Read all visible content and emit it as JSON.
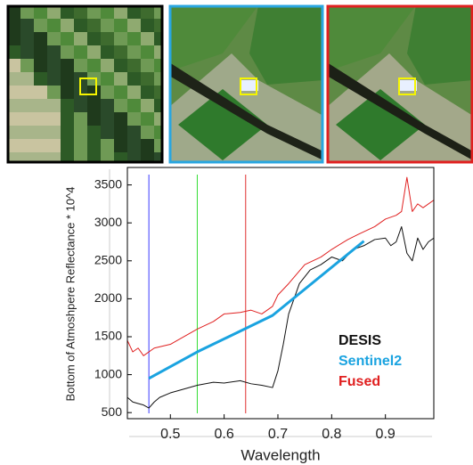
{
  "chart_data": {
    "type": "line",
    "y_label": "Bottom of Atmoshpere Reflectance * 10^4",
    "x_label": "Wavelength",
    "xlim": [
      0.42,
      0.99
    ],
    "ylim": [
      420,
      3730
    ],
    "xticks": [
      0.5,
      0.6,
      0.7,
      0.8,
      0.9
    ],
    "yticks": [
      500,
      1000,
      1500,
      2000,
      2500,
      3000,
      3500
    ],
    "vlines": [
      {
        "x": 0.46,
        "color": "#3a3aff"
      },
      {
        "x": 0.55,
        "color": "#33dd33"
      },
      {
        "x": 0.64,
        "color": "#e03030"
      }
    ],
    "series": [
      {
        "name": "DESIS",
        "color": "#111111",
        "x": [
          0.42,
          0.43,
          0.44,
          0.45,
          0.46,
          0.47,
          0.48,
          0.5,
          0.52,
          0.55,
          0.58,
          0.6,
          0.63,
          0.65,
          0.67,
          0.69,
          0.7,
          0.71,
          0.72,
          0.74,
          0.76,
          0.78,
          0.8,
          0.82,
          0.84,
          0.86,
          0.88,
          0.9,
          0.91,
          0.92,
          0.93,
          0.94,
          0.95,
          0.96,
          0.97,
          0.98,
          0.99
        ],
        "values": [
          700,
          640,
          620,
          600,
          560,
          640,
          700,
          760,
          800,
          860,
          900,
          890,
          920,
          880,
          860,
          830,
          1050,
          1400,
          1800,
          2200,
          2380,
          2450,
          2550,
          2500,
          2650,
          2700,
          2780,
          2800,
          2700,
          2750,
          2950,
          2600,
          2500,
          2800,
          2650,
          2750,
          2800
        ]
      },
      {
        "name": "Sentinel2",
        "color": "#1aa3e0",
        "x": [
          0.46,
          0.55,
          0.69,
          0.86
        ],
        "values": [
          950,
          1300,
          1780,
          2760
        ]
      },
      {
        "name": "Fused",
        "color": "#e02020",
        "x": [
          0.42,
          0.43,
          0.44,
          0.45,
          0.47,
          0.5,
          0.52,
          0.55,
          0.58,
          0.6,
          0.63,
          0.65,
          0.67,
          0.69,
          0.7,
          0.72,
          0.75,
          0.78,
          0.8,
          0.83,
          0.85,
          0.88,
          0.9,
          0.92,
          0.93,
          0.94,
          0.95,
          0.96,
          0.97,
          0.99
        ],
        "values": [
          1450,
          1300,
          1350,
          1250,
          1350,
          1400,
          1480,
          1600,
          1700,
          1800,
          1820,
          1850,
          1800,
          1900,
          2050,
          2200,
          2450,
          2550,
          2650,
          2780,
          2850,
          2950,
          3050,
          3100,
          3150,
          3600,
          3150,
          3250,
          3200,
          3300
        ]
      }
    ]
  }
}
